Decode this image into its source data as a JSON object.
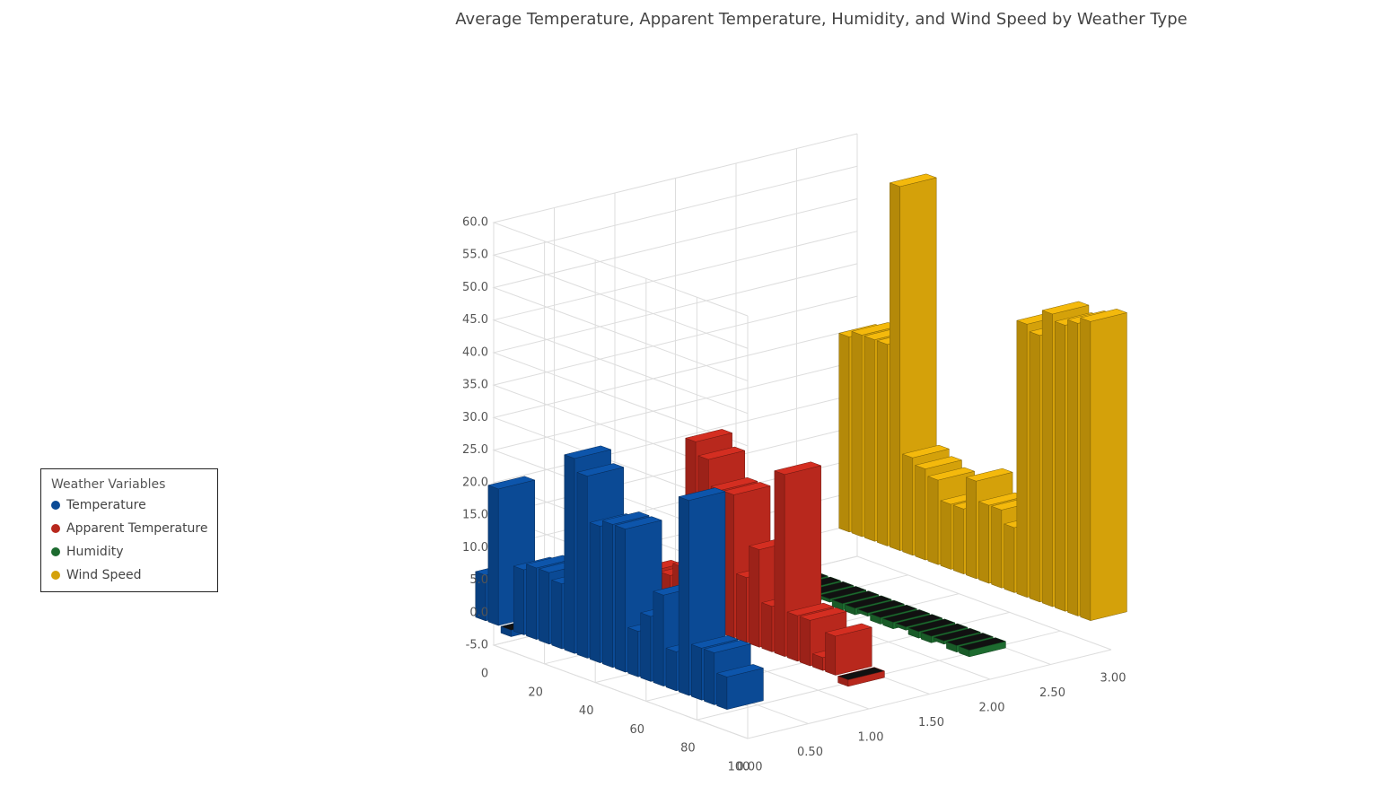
{
  "chart_data": {
    "type": "bar3d",
    "title": "Average Temperature, Apparent Temperature, Humidity, and Wind Speed by Weather Type",
    "legend_title": "Weather Variables",
    "legend_position": "left",
    "x": [
      0,
      5,
      10,
      15,
      20,
      25,
      30,
      35,
      40,
      45,
      50,
      55,
      60,
      65,
      70,
      75,
      80,
      85,
      90,
      95
    ],
    "series": [
      {
        "name": "Temperature",
        "color": "#0b4a95",
        "z": 0,
        "values": [
          7,
          21,
          -1,
          10,
          11,
          11,
          10,
          30,
          28,
          21,
          22,
          22,
          7,
          10,
          14,
          6,
          30,
          8,
          8,
          5
        ]
      },
      {
        "name": "Apparent Temperature",
        "color": "#b8281d",
        "z": 1,
        "values": [
          -1,
          3,
          2,
          5,
          4,
          6,
          8,
          28,
          26,
          22,
          22,
          10,
          15,
          7,
          28,
          7,
          7,
          2,
          6,
          -1
        ]
      },
      {
        "name": "Humidity",
        "color": "#1d6b2f",
        "z": 2,
        "values": [
          -1,
          -1,
          -0.5,
          -1,
          -1,
          -0.5,
          -1,
          -1,
          -0.5,
          -1,
          -1,
          -0.5,
          -1,
          -1,
          -0.5,
          -1,
          -1,
          -0.5,
          -1,
          -1
        ]
      },
      {
        "name": "Wind Speed",
        "color": "#d4a10a",
        "z": 3,
        "values": [
          30,
          31,
          31,
          31,
          56,
          15,
          14,
          13,
          10,
          10,
          15,
          12,
          12,
          10,
          42,
          41,
          45,
          44,
          45,
          46
        ]
      }
    ],
    "xlim": [
      0,
      100
    ],
    "xticks": [
      0,
      20,
      40,
      60,
      80,
      100
    ],
    "ylim": [
      -5,
      60
    ],
    "yticks": [
      {
        "value": -5,
        "label": "-5.0"
      },
      {
        "value": 0,
        "label": "0.0"
      },
      {
        "value": 5,
        "label": "5.0"
      },
      {
        "value": 10,
        "label": "10.0"
      },
      {
        "value": 15,
        "label": "15.0"
      },
      {
        "value": 20,
        "label": "20.0"
      },
      {
        "value": 25,
        "label": "25.0"
      },
      {
        "value": 30,
        "label": "30.0"
      },
      {
        "value": 35,
        "label": "35.0"
      },
      {
        "value": 40,
        "label": "40.0"
      },
      {
        "value": 45,
        "label": "45.0"
      },
      {
        "value": 50,
        "label": "50.0"
      },
      {
        "value": 55,
        "label": "55.0"
      },
      {
        "value": 60,
        "label": "60.0"
      }
    ],
    "zlim": [
      0,
      3
    ],
    "zticks": [
      {
        "value": 0,
        "label": "0.00"
      },
      {
        "value": 0.5,
        "label": "0.50"
      },
      {
        "value": 1,
        "label": "1.00"
      },
      {
        "value": 1.5,
        "label": "1.50"
      },
      {
        "value": 2,
        "label": "2.00"
      },
      {
        "value": 2.5,
        "label": "2.50"
      },
      {
        "value": 3,
        "label": "3.00"
      }
    ],
    "grid": true
  }
}
